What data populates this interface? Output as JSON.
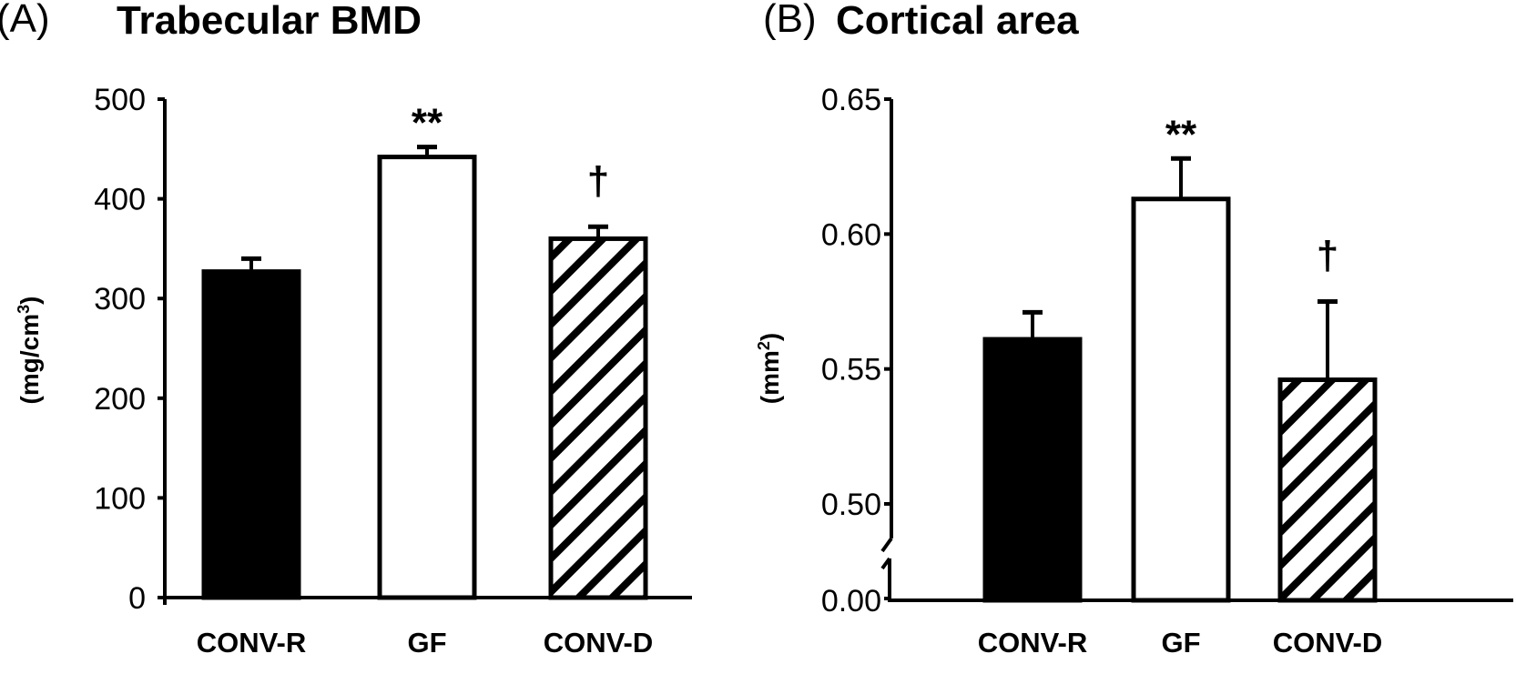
{
  "chart_data": [
    {
      "panel": "(A)",
      "type": "bar",
      "title": "Trabecular BMD",
      "xlabel": "",
      "ylabel": "(mg/cm³)",
      "ylabel_base": "(mg/cm",
      "ylabel_sup": "3",
      "ylabel_close": ")",
      "ylim": [
        0,
        500
      ],
      "yticks": [
        0,
        100,
        200,
        300,
        400,
        500
      ],
      "ytick_labels": [
        "0",
        "100",
        "200",
        "300",
        "400",
        "500"
      ],
      "axis_break": false,
      "categories": [
        "CONV-R",
        "GF",
        "CONV-D"
      ],
      "values": [
        327,
        442,
        360
      ],
      "errors": [
        13,
        10,
        12
      ],
      "fills": [
        "solid-black",
        "white",
        "diagonal-hatch"
      ],
      "annotations": [
        "",
        "**",
        "†"
      ],
      "grid": false,
      "legend": "none"
    },
    {
      "panel": "(B)",
      "type": "bar",
      "title": "Cortical area",
      "xlabel": "",
      "ylabel": "(mm²)",
      "ylabel_base": "(mm",
      "ylabel_sup": "2",
      "ylabel_close": ")",
      "ylim": [
        0.475,
        0.65
      ],
      "yticks": [
        0.5,
        0.55,
        0.6,
        0.65
      ],
      "ytick_labels": [
        "0.50",
        "0.55",
        "0.60",
        "0.65"
      ],
      "axis_break": true,
      "axis_break_bottom_label": "0.00",
      "categories": [
        "CONV-R",
        "GF",
        "CONV-D"
      ],
      "values": [
        0.561,
        0.613,
        0.546
      ],
      "errors": [
        0.01,
        0.015,
        0.029
      ],
      "fills": [
        "solid-black",
        "white",
        "diagonal-hatch"
      ],
      "annotations": [
        "",
        "**",
        "†"
      ],
      "grid": false,
      "legend": "none"
    }
  ],
  "colors": {
    "ink": "#000000",
    "background": "#ffffff"
  }
}
